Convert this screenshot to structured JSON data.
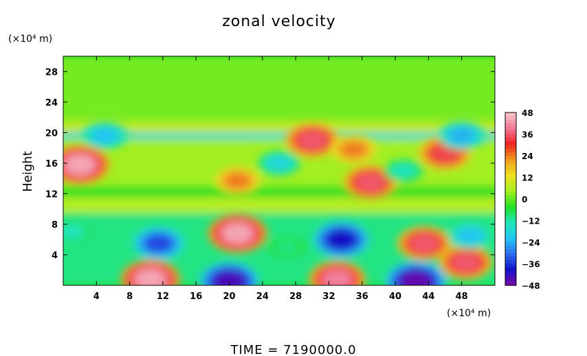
{
  "chart_data": {
    "type": "heatmap",
    "title": "zonal velocity",
    "xlabel": "",
    "ylabel": "Height",
    "x_unit": "(×10⁴ m)",
    "y_unit": "(×10⁴ m)",
    "xlim": [
      0,
      52
    ],
    "ylim": [
      0,
      30
    ],
    "x_ticks": [
      4,
      8,
      12,
      16,
      20,
      24,
      28,
      32,
      36,
      40,
      44,
      48
    ],
    "y_ticks": [
      4,
      8,
      12,
      16,
      20,
      24,
      28
    ],
    "colorbar": {
      "range": [
        -48,
        48
      ],
      "ticks": [
        48,
        36,
        24,
        12,
        0,
        -12,
        -24,
        -36,
        -48
      ],
      "colormap": [
        "#7a0aa8",
        "#1010c8",
        "#2e6ef0",
        "#22c8f0",
        "#20e6b8",
        "#22e022",
        "#a8f020",
        "#f0e020",
        "#f09a20",
        "#f02020",
        "#f07a9a",
        "#f8c8c8"
      ]
    },
    "features": [
      {
        "x": 10.5,
        "y": 0.8,
        "value": 44
      },
      {
        "x": 33,
        "y": 0.8,
        "value": 40
      },
      {
        "x": 20,
        "y": 0.5,
        "value": -44
      },
      {
        "x": 42.5,
        "y": 0.5,
        "value": -46
      },
      {
        "x": 11.5,
        "y": 5.5,
        "value": -34
      },
      {
        "x": 33.5,
        "y": 6,
        "value": -40
      },
      {
        "x": 21,
        "y": 6.8,
        "value": 44
      },
      {
        "x": 43.5,
        "y": 5.5,
        "value": 36
      },
      {
        "x": 48.5,
        "y": 3,
        "value": 36
      },
      {
        "x": 2,
        "y": 15.8,
        "value": 44
      },
      {
        "x": 37,
        "y": 13.5,
        "value": 36
      },
      {
        "x": 30,
        "y": 19,
        "value": 36
      },
      {
        "x": 46,
        "y": 17.3,
        "value": 34
      },
      {
        "x": 21,
        "y": 13.7,
        "value": 24
      },
      {
        "x": 35,
        "y": 17.8,
        "value": 24
      },
      {
        "x": 5,
        "y": 19.6,
        "value": -22
      },
      {
        "x": 48,
        "y": 19.6,
        "value": -24
      },
      {
        "x": 26,
        "y": 16,
        "value": -18
      },
      {
        "x": 41,
        "y": 15,
        "value": -14
      },
      {
        "x": 1,
        "y": 7,
        "value": -14
      },
      {
        "x": 49,
        "y": 6.5,
        "value": -22
      },
      {
        "x": 27,
        "y": 5,
        "value": -10
      }
    ]
  },
  "footer": "TIME  =  7190000.0"
}
